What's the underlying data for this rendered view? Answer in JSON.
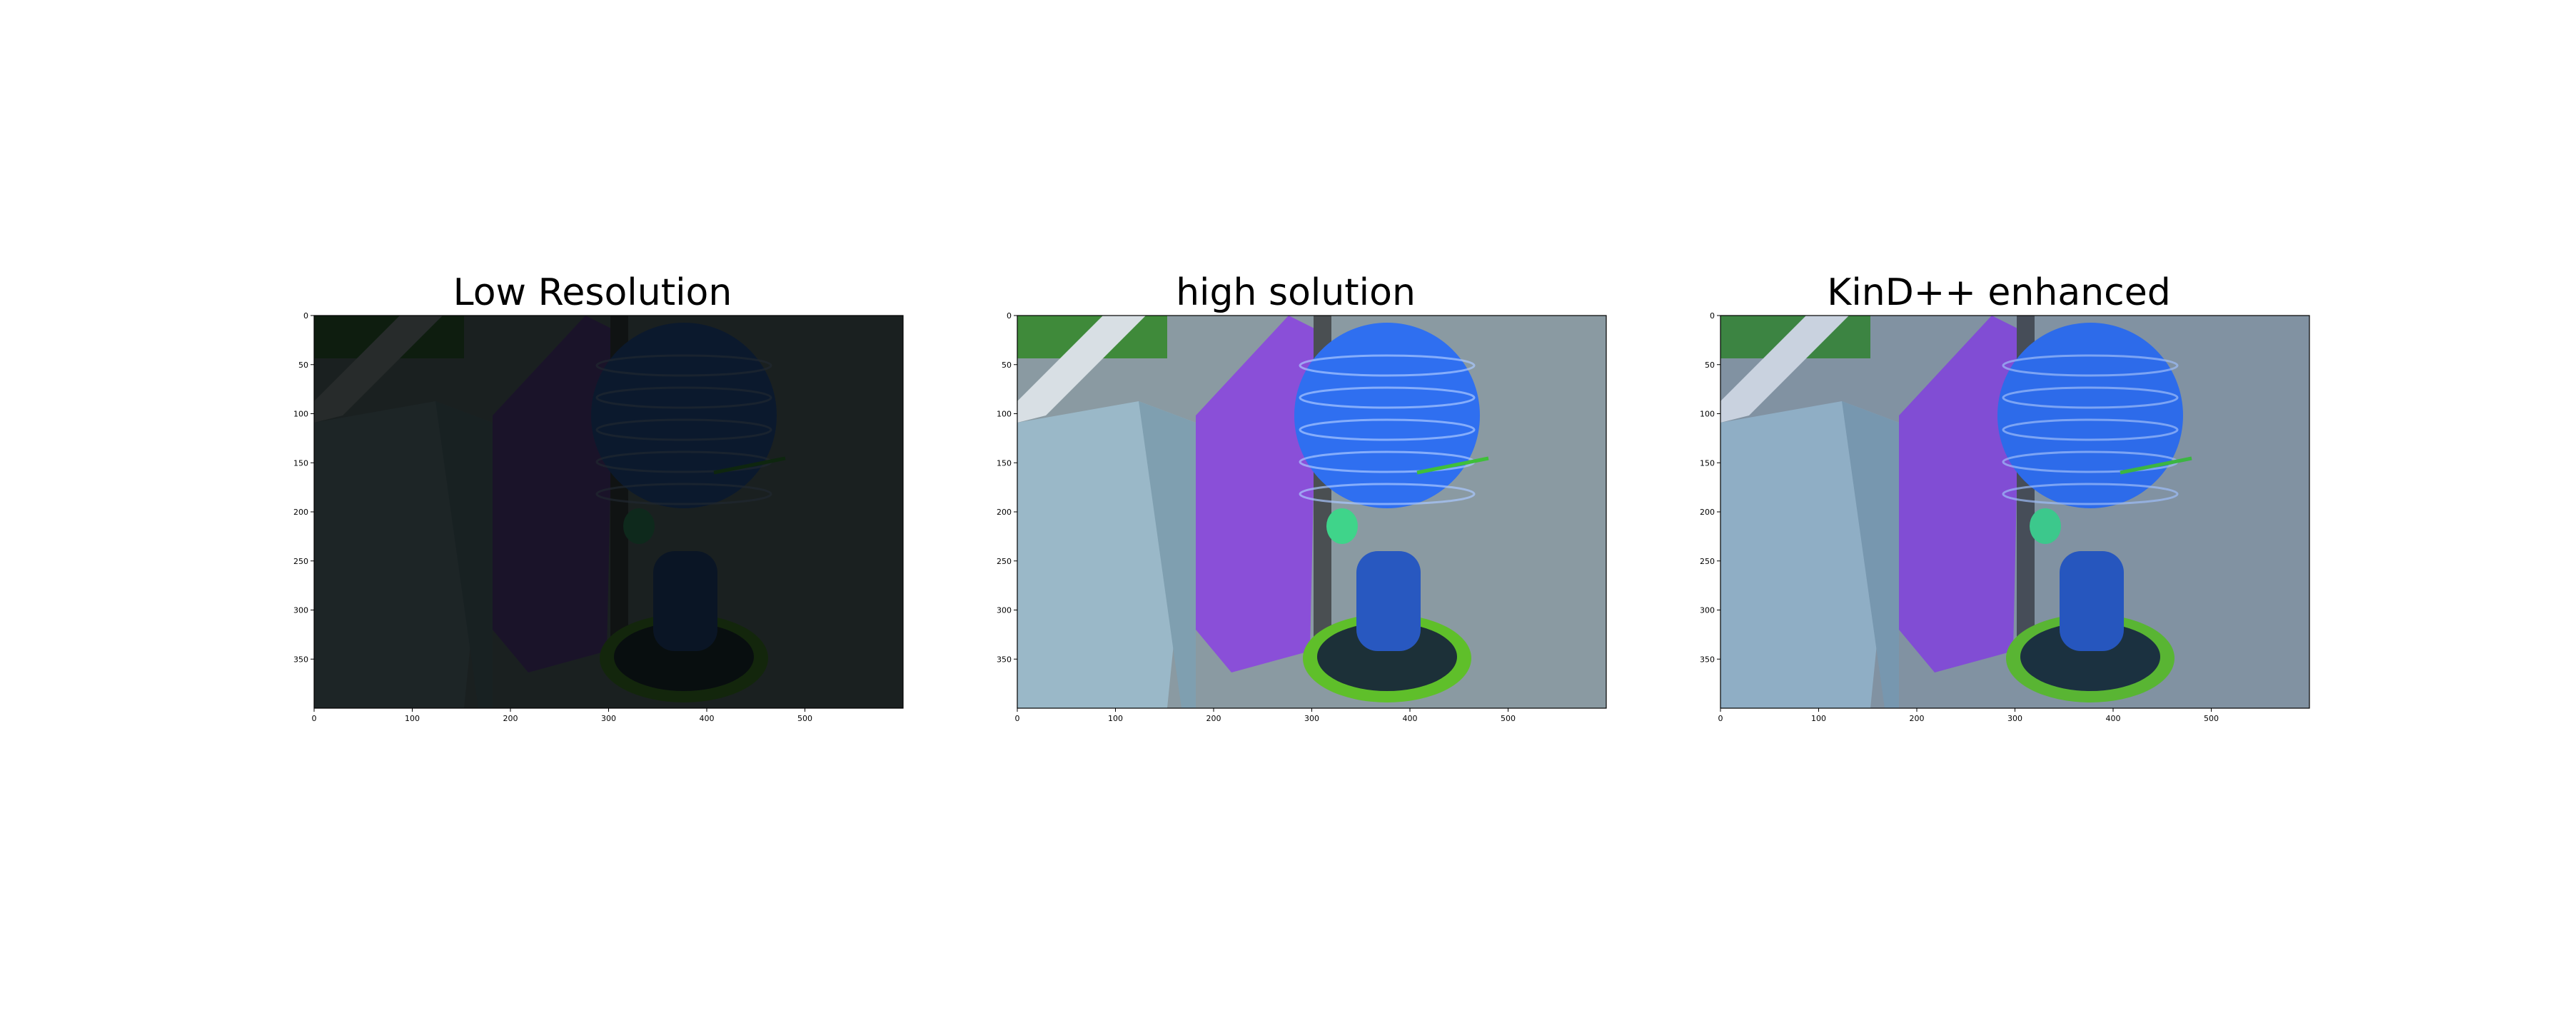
{
  "figure": {
    "panels": [
      {
        "title": "Low Resolution",
        "variant": "dark",
        "xticks": [
          "0",
          "100",
          "200",
          "300",
          "400",
          "500"
        ],
        "yticks": [
          "0",
          "50",
          "100",
          "150",
          "200",
          "250",
          "300",
          "350"
        ]
      },
      {
        "title": "high solution",
        "variant": "bright",
        "xticks": [
          "0",
          "100",
          "200",
          "300",
          "400",
          "500"
        ],
        "yticks": [
          "0",
          "50",
          "100",
          "150",
          "200",
          "250",
          "300",
          "350"
        ]
      },
      {
        "title": "KinD++ enhanced",
        "variant": "enhanced",
        "xticks": [
          "0",
          "100",
          "200",
          "300",
          "400",
          "500"
        ],
        "yticks": [
          "0",
          "50",
          "100",
          "150",
          "200",
          "250",
          "300",
          "350"
        ]
      }
    ],
    "image_extent": {
      "x": [
        0,
        600
      ],
      "y": [
        400,
        0
      ]
    },
    "colors": {
      "bottle": "#2f6ff0",
      "box": "#9ab8c8",
      "purple_box": "#8a4fd8",
      "tray": "#5fbf2a",
      "background": "#8a9aa2",
      "leaf": "#3fd48a"
    }
  }
}
